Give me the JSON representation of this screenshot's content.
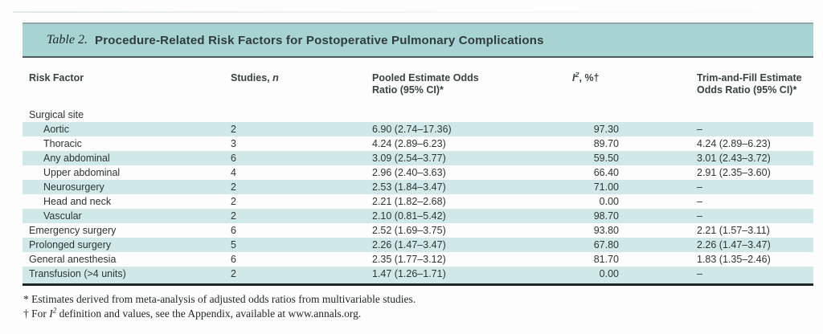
{
  "title": {
    "label": "Table 2.",
    "text": "Procedure-Related Risk Factors for Postoperative Pulmonary Complications"
  },
  "table": {
    "columns": [
      {
        "key": "risk-factor",
        "lines": [
          [
            {
              "t": "Risk Factor"
            }
          ]
        ]
      },
      {
        "key": "studies",
        "lines": [
          [
            {
              "t": "Studies, "
            },
            {
              "t": "n",
              "i": true
            }
          ]
        ]
      },
      {
        "key": "pooled-or",
        "lines": [
          [
            {
              "t": "Pooled Estimate Odds"
            }
          ],
          [
            {
              "t": "Ratio (95% CI)*"
            }
          ]
        ]
      },
      {
        "key": "i2",
        "lines": [
          [
            {
              "t": "I",
              "i": true
            },
            {
              "t": "2",
              "sup": true
            },
            {
              "t": ", %†"
            }
          ]
        ]
      },
      {
        "key": "trim-and-fill",
        "lines": [
          [
            {
              "t": "Trim-and-Fill Estimate"
            }
          ],
          [
            {
              "t": "Odds Ratio (95% CI)*"
            }
          ]
        ]
      }
    ],
    "rows": [
      {
        "label": "Surgical site",
        "indent": false,
        "shaded": false,
        "studies": "",
        "pooled": "",
        "i2": "",
        "trim": ""
      },
      {
        "label": "Aortic",
        "indent": true,
        "shaded": true,
        "studies": "2",
        "pooled": "6.90 (2.74–17.36)",
        "i2": "97.30",
        "trim": "–"
      },
      {
        "label": "Thoracic",
        "indent": true,
        "shaded": false,
        "studies": "3",
        "pooled": "4.24 (2.89–6.23)",
        "i2": "89.70",
        "trim": "4.24 (2.89–6.23)"
      },
      {
        "label": "Any abdominal",
        "indent": true,
        "shaded": true,
        "studies": "6",
        "pooled": "3.09 (2.54–3.77)",
        "i2": "59.50",
        "trim": "3.01 (2.43–3.72)"
      },
      {
        "label": "Upper abdominal",
        "indent": true,
        "shaded": false,
        "studies": "4",
        "pooled": "2.96 (2.40–3.63)",
        "i2": "66.40",
        "trim": "2.91 (2.35–3.60)"
      },
      {
        "label": "Neurosurgery",
        "indent": true,
        "shaded": true,
        "studies": "2",
        "pooled": "2.53 (1.84–3.47)",
        "i2": "71.00",
        "trim": "–"
      },
      {
        "label": "Head and neck",
        "indent": true,
        "shaded": false,
        "studies": "2",
        "pooled": "2.21 (1.82–2.68)",
        "i2": "0.00",
        "trim": "–"
      },
      {
        "label": "Vascular",
        "indent": true,
        "shaded": true,
        "studies": "2",
        "pooled": "2.10 (0.81–5.42)",
        "i2": "98.70",
        "trim": "–"
      },
      {
        "label": "Emergency surgery",
        "indent": false,
        "shaded": false,
        "studies": "6",
        "pooled": "2.52 (1.69–3.75)",
        "i2": "93.80",
        "trim": "2.21 (1.57–3.11)"
      },
      {
        "label": "Prolonged surgery",
        "indent": false,
        "shaded": true,
        "studies": "5",
        "pooled": "2.26 (1.47–3.47)",
        "i2": "67.80",
        "trim": "2.26 (1.47–3.47)"
      },
      {
        "label": "General anesthesia",
        "indent": false,
        "shaded": false,
        "studies": "6",
        "pooled": "2.35 (1.77–3.12)",
        "i2": "81.70",
        "trim": "1.83 (1.35–2.46)"
      },
      {
        "label": "Transfusion (>4 units)",
        "indent": false,
        "shaded": true,
        "studies": "2",
        "pooled": "1.47 (1.26–1.71)",
        "i2": "0.00",
        "trim": "–"
      }
    ]
  },
  "footnotes": [
    {
      "segs": [
        {
          "t": "* Estimates derived from meta-analysis of adjusted odds ratios from multivariable studies."
        }
      ]
    },
    {
      "segs": [
        {
          "t": "† For "
        },
        {
          "t": "I",
          "i": true
        },
        {
          "t": "2",
          "sup": true
        },
        {
          "t": " definition and values, see the Appendix, available at www.annals.org."
        }
      ]
    }
  ]
}
